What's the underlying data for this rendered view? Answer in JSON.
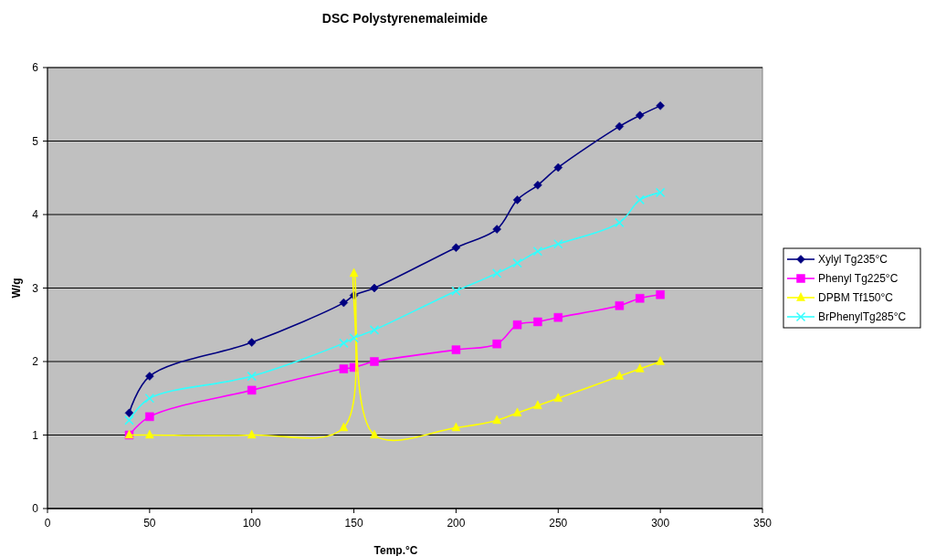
{
  "chart_data": {
    "type": "line",
    "title": "DSC Polystyrenemaleimide",
    "xlabel": "Temp.°C",
    "ylabel": "W/g",
    "x": [
      40,
      50,
      100,
      145,
      150,
      160,
      200,
      220,
      230,
      240,
      250,
      280,
      290,
      300
    ],
    "xlim": [
      0,
      350
    ],
    "xticks": [
      0,
      50,
      100,
      150,
      200,
      250,
      300,
      350
    ],
    "ylim": [
      0,
      6
    ],
    "yticks": [
      0,
      1,
      2,
      3,
      4,
      5,
      6
    ],
    "grid": "y",
    "legend": "right",
    "series": [
      {
        "name": "Xylyl Tg235°C",
        "color": "#000080",
        "marker": "diamond",
        "values": [
          1.3,
          1.8,
          2.26,
          2.8,
          2.9,
          3.0,
          3.55,
          3.8,
          4.2,
          4.4,
          4.64,
          5.2,
          5.35,
          5.48
        ]
      },
      {
        "name": "Phenyl Tg225°C",
        "color": "#ff00ff",
        "marker": "square",
        "values": [
          1.0,
          1.25,
          1.61,
          1.9,
          1.92,
          2.0,
          2.16,
          2.24,
          2.5,
          2.54,
          2.6,
          2.76,
          2.86,
          2.91
        ]
      },
      {
        "name": "DPBM Tf150°C",
        "color": "#ffff00",
        "marker": "triangle",
        "values": [
          1.0,
          1.0,
          1.0,
          1.1,
          3.2,
          1.0,
          1.1,
          1.2,
          1.3,
          1.4,
          1.5,
          1.8,
          1.9,
          2.0
        ]
      },
      {
        "name": "BrPhenylTg285°C",
        "color": "#33ffff",
        "marker": "cross",
        "values": [
          1.2,
          1.5,
          1.8,
          2.25,
          2.32,
          2.43,
          2.96,
          3.2,
          3.34,
          3.5,
          3.6,
          3.89,
          4.2,
          4.3
        ]
      }
    ]
  }
}
